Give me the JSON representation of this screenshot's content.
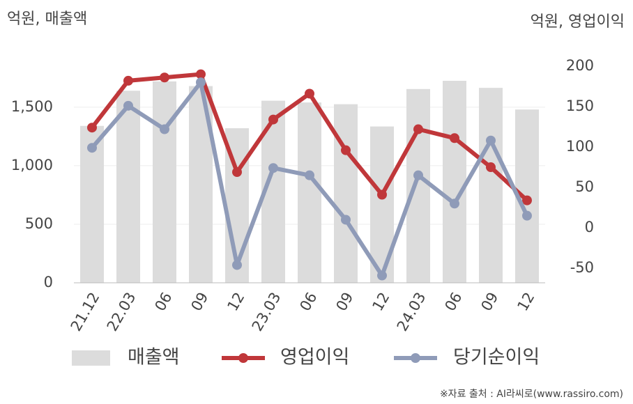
{
  "chart_data": {
    "type": "bar",
    "y_label": "억원, 매출액",
    "y2_label": "억원, 영업이익",
    "source": "※자료 출처 : AI라씨로(www.rassiro.com)",
    "categories": [
      "21.12",
      "22.03",
      "06",
      "09",
      "12",
      "23.03",
      "06",
      "09",
      "12",
      "24.03",
      "06",
      "09",
      "12"
    ],
    "series": [
      {
        "name": "매출액",
        "type": "bar",
        "color": "#dcdcdc",
        "values": [
          1340,
          1640,
          1720,
          1680,
          1320,
          1555,
          1540,
          1525,
          1335,
          1655,
          1725,
          1665,
          1480
        ]
      },
      {
        "name": "영업이익",
        "type": "line",
        "axis": "y2",
        "color": "#c0373a",
        "values": [
          124,
          182,
          186,
          190,
          69,
          134,
          166,
          96,
          41,
          122,
          111,
          75,
          34
        ]
      },
      {
        "name": "당기순이익",
        "type": "line",
        "axis": "y2",
        "color": "#8f9bb8",
        "values": [
          99,
          151,
          122,
          180,
          -46,
          74,
          65,
          10,
          -59,
          65,
          30,
          108,
          15
        ]
      }
    ],
    "ylim": [
      0,
      1850
    ],
    "yticks": [
      0,
      500,
      {
        "value": 1000,
        "label": "1,000"
      },
      {
        "value": 1500,
        "label": "1,500"
      }
    ],
    "y2lim": [
      -68,
      200
    ],
    "y2ticks": [
      -50,
      0,
      50,
      100,
      150,
      200
    ],
    "grid": true
  }
}
